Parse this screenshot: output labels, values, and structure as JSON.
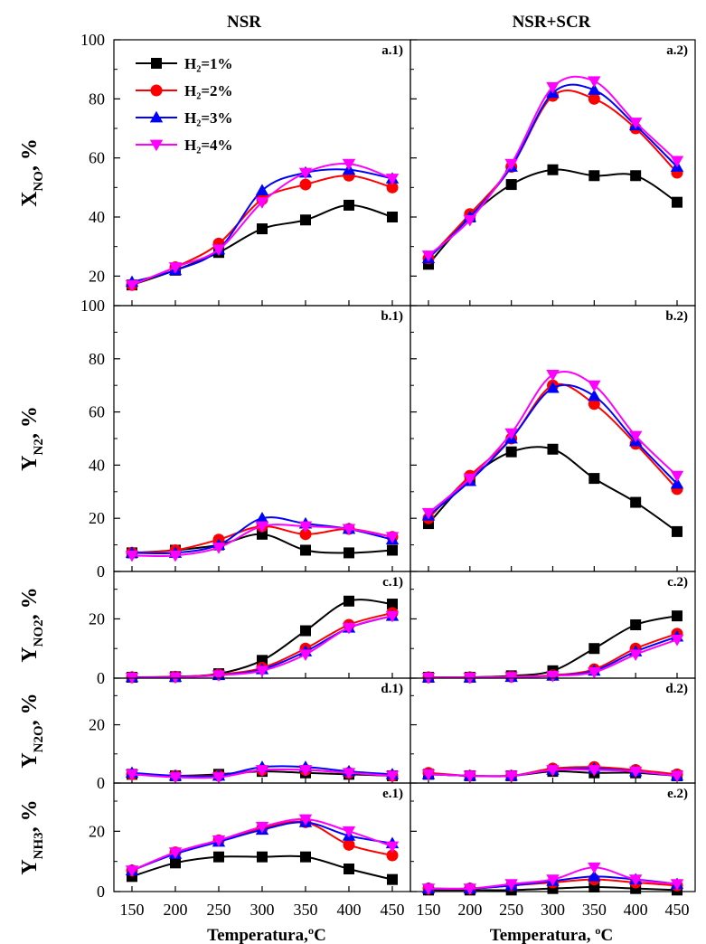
{
  "figure": {
    "columns": [
      "NSR",
      "NSR+SCR"
    ],
    "x_label": "Temperatura,ºC",
    "x_label_right": "Temperatura, ºC",
    "x_ticks": [
      "150",
      "200",
      "250",
      "300",
      "350",
      "400",
      "450"
    ],
    "legend": [
      "H₂=1%",
      "H₂=2%",
      "H₂=3%",
      "H₂=4%"
    ]
  },
  "series_style": [
    {
      "name": "H2=1%",
      "color": "#000000",
      "marker": "square"
    },
    {
      "name": "H2=2%",
      "color": "#ff0000",
      "marker": "circle"
    },
    {
      "name": "H2=3%",
      "color": "#0000ff",
      "marker": "triangle-up"
    },
    {
      "name": "H2=4%",
      "color": "#ff00ff",
      "marker": "triangle-down"
    }
  ],
  "chart_data": [
    {
      "type": "line",
      "panel": "a.1)",
      "ylabel": "X",
      "ylabel_sub": "NO",
      "ylabel_unit": ", %",
      "x": [
        150,
        200,
        250,
        300,
        350,
        400,
        450
      ],
      "ylim": [
        10,
        100
      ],
      "yticks": [
        20,
        40,
        60,
        80,
        100
      ],
      "series": [
        {
          "name": "H₂=1%",
          "values": [
            17,
            22,
            28,
            36,
            39,
            44,
            40
          ]
        },
        {
          "name": "H₂=2%",
          "values": [
            17,
            23,
            31,
            46,
            51,
            54,
            50
          ]
        },
        {
          "name": "H₂=3%",
          "values": [
            18,
            22,
            29,
            49,
            55,
            56,
            53
          ]
        },
        {
          "name": "H₂=4%",
          "values": [
            17,
            23,
            29,
            45,
            55,
            58,
            53
          ]
        }
      ]
    },
    {
      "type": "line",
      "panel": "a.2)",
      "x": [
        150,
        200,
        250,
        300,
        350,
        400,
        450
      ],
      "ylim": [
        10,
        100
      ],
      "yticks": [],
      "series": [
        {
          "name": "H₂=1%",
          "values": [
            24,
            40,
            51,
            56,
            54,
            54,
            45
          ]
        },
        {
          "name": "H₂=2%",
          "values": [
            26,
            41,
            57,
            81,
            80,
            70,
            55
          ]
        },
        {
          "name": "H₂=3%",
          "values": [
            26,
            40,
            57,
            82,
            83,
            71,
            57
          ]
        },
        {
          "name": "H₂=4%",
          "values": [
            27,
            39,
            58,
            84,
            86,
            72,
            59
          ]
        }
      ]
    },
    {
      "type": "line",
      "panel": "b.1)",
      "ylabel": "Y",
      "ylabel_sub": "N2",
      "ylabel_unit": ", %",
      "x": [
        150,
        200,
        250,
        300,
        350,
        400,
        450
      ],
      "ylim": [
        0,
        100
      ],
      "yticks": [
        0,
        20,
        40,
        60,
        80,
        100
      ],
      "series": [
        {
          "name": "H₂=1%",
          "values": [
            7,
            8,
            10,
            14,
            8,
            7,
            8
          ]
        },
        {
          "name": "H₂=2%",
          "values": [
            7,
            8,
            12,
            17,
            14,
            16,
            13
          ]
        },
        {
          "name": "H₂=3%",
          "values": [
            7,
            7,
            10,
            20,
            18,
            16,
            12
          ]
        },
        {
          "name": "H₂=4%",
          "values": [
            6,
            6,
            9,
            17,
            17,
            16,
            13
          ]
        }
      ]
    },
    {
      "type": "line",
      "panel": "b.2)",
      "x": [
        150,
        200,
        250,
        300,
        350,
        400,
        450
      ],
      "ylim": [
        0,
        100
      ],
      "yticks": [],
      "series": [
        {
          "name": "H₂=1%",
          "values": [
            18,
            35,
            45,
            46,
            35,
            26,
            15
          ]
        },
        {
          "name": "H₂=2%",
          "values": [
            20,
            36,
            50,
            70,
            63,
            48,
            31
          ]
        },
        {
          "name": "H₂=3%",
          "values": [
            21,
            34,
            50,
            69,
            66,
            49,
            33
          ]
        },
        {
          "name": "H₂=4%",
          "values": [
            22,
            35,
            52,
            74,
            70,
            51,
            36
          ]
        }
      ]
    },
    {
      "type": "line",
      "panel": "c.1)",
      "ylabel": "Y",
      "ylabel_sub": "NO2",
      "ylabel_unit": ", %",
      "x": [
        150,
        200,
        250,
        300,
        350,
        400,
        450
      ],
      "ylim": [
        0,
        36
      ],
      "yticks": [
        0,
        20
      ],
      "series": [
        {
          "name": "H₂=1%",
          "values": [
            0.3,
            0.5,
            1.5,
            6,
            16,
            26,
            25
          ]
        },
        {
          "name": "H₂=2%",
          "values": [
            0.3,
            0.5,
            1.2,
            3.5,
            10,
            18,
            22
          ]
        },
        {
          "name": "H₂=3%",
          "values": [
            0.3,
            0.4,
            1,
            3,
            9,
            17,
            21
          ]
        },
        {
          "name": "H₂=4%",
          "values": [
            0.2,
            0.3,
            1,
            2.5,
            8,
            17,
            21
          ]
        }
      ]
    },
    {
      "type": "line",
      "panel": "c.2)",
      "x": [
        150,
        200,
        250,
        300,
        350,
        400,
        450
      ],
      "ylim": [
        0,
        36
      ],
      "yticks": [],
      "series": [
        {
          "name": "H₂=1%",
          "values": [
            0.3,
            0.3,
            0.8,
            2.5,
            10,
            18,
            21
          ]
        },
        {
          "name": "H₂=2%",
          "values": [
            0.3,
            0.3,
            0.5,
            1,
            3,
            10,
            15
          ]
        },
        {
          "name": "H₂=3%",
          "values": [
            0.2,
            0.2,
            0.4,
            0.8,
            2.5,
            9,
            14
          ]
        },
        {
          "name": "H₂=4%",
          "values": [
            0.2,
            0.2,
            0.4,
            0.8,
            2,
            8,
            13
          ]
        }
      ]
    },
    {
      "type": "line",
      "panel": "d.1)",
      "ylabel": "Y",
      "ylabel_sub": "N2O",
      "ylabel_unit": ", %",
      "x": [
        150,
        200,
        250,
        300,
        350,
        400,
        450
      ],
      "ylim": [
        0,
        36
      ],
      "yticks": [
        0,
        20
      ],
      "series": [
        {
          "name": "H₂=1%",
          "values": [
            3,
            2.5,
            3,
            4,
            3.5,
            3,
            2.5
          ]
        },
        {
          "name": "H₂=2%",
          "values": [
            3,
            2.5,
            2.5,
            4.5,
            4.5,
            3.5,
            2.5
          ]
        },
        {
          "name": "H₂=3%",
          "values": [
            3.5,
            2.5,
            2.5,
            5.5,
            5.5,
            4,
            3
          ]
        },
        {
          "name": "H₂=4%",
          "values": [
            3,
            2,
            2,
            4.5,
            4.5,
            3.5,
            2.5
          ]
        }
      ]
    },
    {
      "type": "line",
      "panel": "d.2)",
      "x": [
        150,
        200,
        250,
        300,
        350,
        400,
        450
      ],
      "ylim": [
        0,
        36
      ],
      "yticks": [],
      "series": [
        {
          "name": "H₂=1%",
          "values": [
            3,
            2.5,
            2.5,
            4,
            3.5,
            3.5,
            2.5
          ]
        },
        {
          "name": "H₂=2%",
          "values": [
            3.5,
            2.5,
            2.5,
            5,
            5.5,
            4.5,
            3
          ]
        },
        {
          "name": "H₂=3%",
          "values": [
            3,
            2.5,
            2.5,
            4.5,
            5,
            4,
            2.5
          ]
        },
        {
          "name": "H₂=4%",
          "values": [
            3,
            2.5,
            2.5,
            4.5,
            4.5,
            4,
            2.5
          ]
        }
      ]
    },
    {
      "type": "line",
      "panel": "e.1)",
      "ylabel": "Y",
      "ylabel_sub": "NH3",
      "ylabel_unit": ", %",
      "x": [
        150,
        200,
        250,
        300,
        350,
        400,
        450
      ],
      "ylim": [
        0,
        36
      ],
      "yticks": [
        0,
        20
      ],
      "series": [
        {
          "name": "H₂=1%",
          "values": [
            5,
            9.5,
            11.5,
            11.5,
            11.5,
            7.5,
            4
          ]
        },
        {
          "name": "H₂=2%",
          "values": [
            7,
            13,
            17,
            21,
            23,
            15.5,
            12
          ]
        },
        {
          "name": "H₂=3%",
          "values": [
            7,
            12.5,
            16.5,
            20.5,
            23,
            18.5,
            16
          ]
        },
        {
          "name": "H₂=4%",
          "values": [
            7,
            13,
            17,
            21.5,
            24,
            20,
            15
          ]
        }
      ]
    },
    {
      "type": "line",
      "panel": "e.2)",
      "x": [
        150,
        200,
        250,
        300,
        350,
        400,
        450
      ],
      "ylim": [
        0,
        36
      ],
      "yticks": [],
      "series": [
        {
          "name": "H₂=1%",
          "values": [
            0.5,
            0.5,
            0.5,
            1,
            1.5,
            1,
            0.5
          ]
        },
        {
          "name": "H₂=2%",
          "values": [
            1,
            1,
            2,
            3,
            4,
            3,
            2
          ]
        },
        {
          "name": "H₂=3%",
          "values": [
            1,
            1,
            2,
            3.5,
            5,
            4,
            2.5
          ]
        },
        {
          "name": "H₂=4%",
          "values": [
            1,
            1,
            2.5,
            4,
            8,
            4,
            2.5
          ]
        }
      ]
    }
  ]
}
